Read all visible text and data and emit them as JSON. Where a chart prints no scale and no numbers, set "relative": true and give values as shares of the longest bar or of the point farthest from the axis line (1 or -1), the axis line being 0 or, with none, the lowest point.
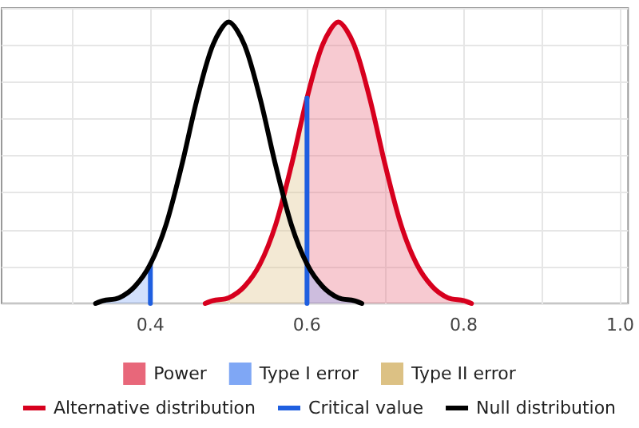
{
  "chart_data": {
    "type": "line",
    "relative": true,
    "xlim": [
      0.21,
      1.01
    ],
    "xticks": [
      {
        "value": 0.3,
        "label": null
      },
      0.4,
      {
        "value": 0.5,
        "label": null
      },
      0.6,
      {
        "value": 0.7,
        "label": null
      },
      0.8,
      {
        "value": 0.9,
        "label": null
      },
      {
        "value": 1.0,
        "label": "1.0"
      }
    ],
    "grid": true,
    "legend": "bottom",
    "marker": "none",
    "line_style": "solid",
    "series": [
      {
        "name": "Power",
        "type": "area",
        "color": "#e8677a",
        "x": [
          0.6,
          0.62,
          0.64,
          0.66,
          0.68,
          0.7,
          0.72,
          0.74,
          0.76,
          0.78,
          0.8,
          0.81
        ],
        "values": [
          0.73,
          0.92,
          1,
          0.92,
          0.73,
          0.49,
          0.28,
          0.14,
          0.06,
          0.02,
          0.01,
          0.0
        ]
      },
      {
        "name": "Type I error",
        "type": "area",
        "color": "#7fa7f5",
        "x": [
          0.33,
          0.34,
          0.36,
          0.38,
          0.4
        ],
        "values": [
          0.0,
          0.01,
          0.02,
          0.06,
          0.14
        ]
      },
      {
        "type": "area",
        "color": "#7fa7f5",
        "x": [
          0.6,
          0.62,
          0.64,
          0.66,
          0.67
        ],
        "values": [
          0.14,
          0.06,
          0.02,
          0.01,
          0.0
        ]
      },
      {
        "name": "Type II error",
        "type": "area",
        "color": "#dcc184",
        "x": [
          0.47,
          0.48,
          0.5,
          0.52,
          0.54,
          0.56,
          0.58,
          0.6
        ],
        "values": [
          0.0,
          0.01,
          0.02,
          0.06,
          0.14,
          0.28,
          0.49,
          0.73
        ]
      },
      {
        "name": "Alternative distribution",
        "color": "#d7001e",
        "x": [
          0.47,
          0.48,
          0.5,
          0.52,
          0.54,
          0.56,
          0.58,
          0.6,
          0.62,
          0.64,
          0.66,
          0.68,
          0.7,
          0.72,
          0.74,
          0.76,
          0.78,
          0.8,
          0.81
        ],
        "values": [
          0.0,
          0.01,
          0.02,
          0.06,
          0.14,
          0.28,
          0.49,
          0.73,
          0.92,
          1,
          0.92,
          0.73,
          0.49,
          0.28,
          0.14,
          0.06,
          0.02,
          0.01,
          0.0
        ]
      },
      {
        "name": "Critical value",
        "color": "#1f5fe0",
        "x": [
          0.4,
          0.4
        ],
        "values": [
          0,
          0.14
        ]
      },
      {
        "color": "#1f5fe0",
        "x": [
          0.6,
          0.6
        ],
        "values": [
          0,
          0.73
        ]
      },
      {
        "name": "Null distribution",
        "color": "#000000",
        "x": [
          0.33,
          0.34,
          0.36,
          0.38,
          0.4,
          0.42,
          0.44,
          0.46,
          0.48,
          0.5,
          0.52,
          0.54,
          0.56,
          0.58,
          0.6,
          0.62,
          0.64,
          0.66,
          0.67
        ],
        "values": [
          0.0,
          0.01,
          0.02,
          0.06,
          0.14,
          0.28,
          0.49,
          0.73,
          0.92,
          1,
          0.92,
          0.73,
          0.49,
          0.28,
          0.14,
          0.06,
          0.02,
          0.01,
          0.0
        ]
      }
    ]
  }
}
